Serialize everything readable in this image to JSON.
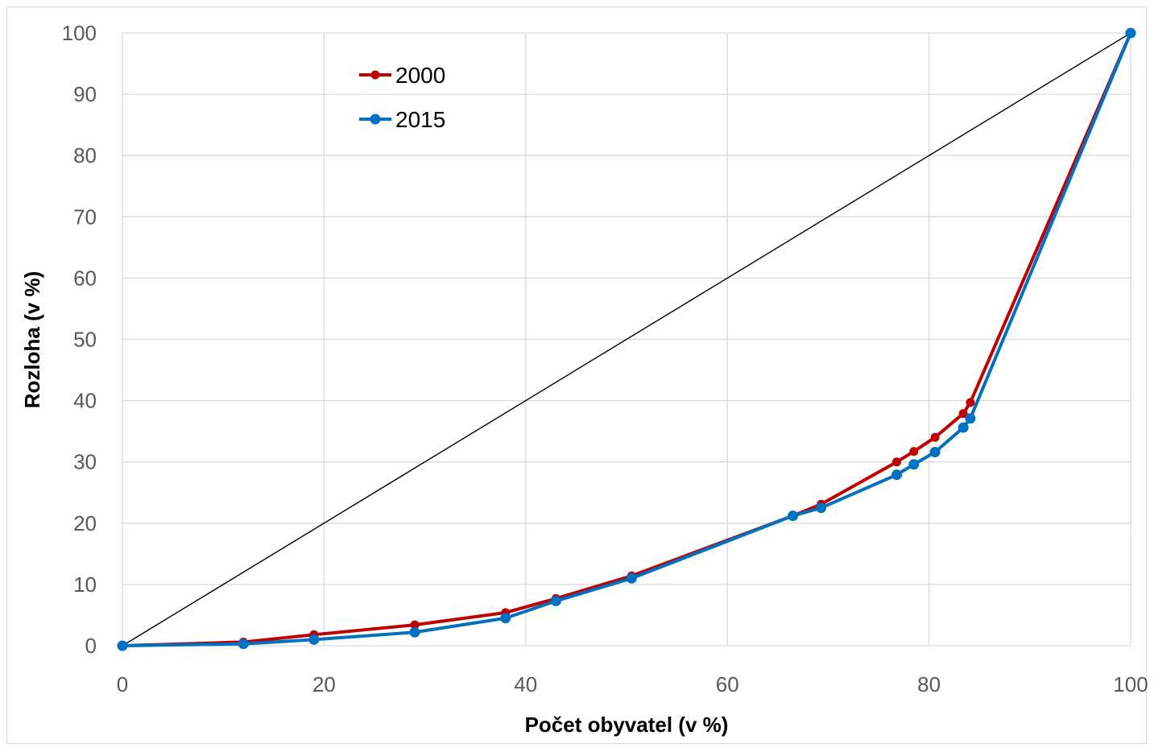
{
  "chart_data": {
    "type": "line",
    "xlabel": "Počet obyvatel (v %)",
    "ylabel": "Rozloha (v %)",
    "xlim": [
      0,
      100
    ],
    "ylim": [
      0,
      100
    ],
    "x_ticks": [
      0,
      20,
      40,
      60,
      80,
      100
    ],
    "y_ticks": [
      0,
      10,
      20,
      30,
      40,
      50,
      60,
      70,
      80,
      90,
      100
    ],
    "grid": true,
    "legend_position": "top-left",
    "reference_line": {
      "points": [
        [
          0,
          0
        ],
        [
          100,
          100
        ]
      ],
      "color": "#000000"
    },
    "series": [
      {
        "name": "2000",
        "color": "#c00000",
        "x": [
          0,
          12,
          19,
          29,
          38,
          43,
          50.5,
          66.5,
          69.3,
          76.8,
          78.5,
          80.6,
          83.4,
          84.1,
          100
        ],
        "y": [
          0,
          0.6,
          1.8,
          3.4,
          5.4,
          7.7,
          11.4,
          21.2,
          23.1,
          30.0,
          31.7,
          34.0,
          37.9,
          39.7,
          100
        ]
      },
      {
        "name": "2015",
        "color": "#0070c0",
        "x": [
          0,
          12,
          19,
          29,
          38,
          43,
          50.5,
          66.5,
          69.3,
          76.8,
          78.5,
          80.6,
          83.4,
          84.1,
          100
        ],
        "y": [
          0,
          0.3,
          1.0,
          2.2,
          4.5,
          7.3,
          11.0,
          21.2,
          22.5,
          27.9,
          29.6,
          31.6,
          35.6,
          37.1,
          100
        ]
      }
    ]
  }
}
